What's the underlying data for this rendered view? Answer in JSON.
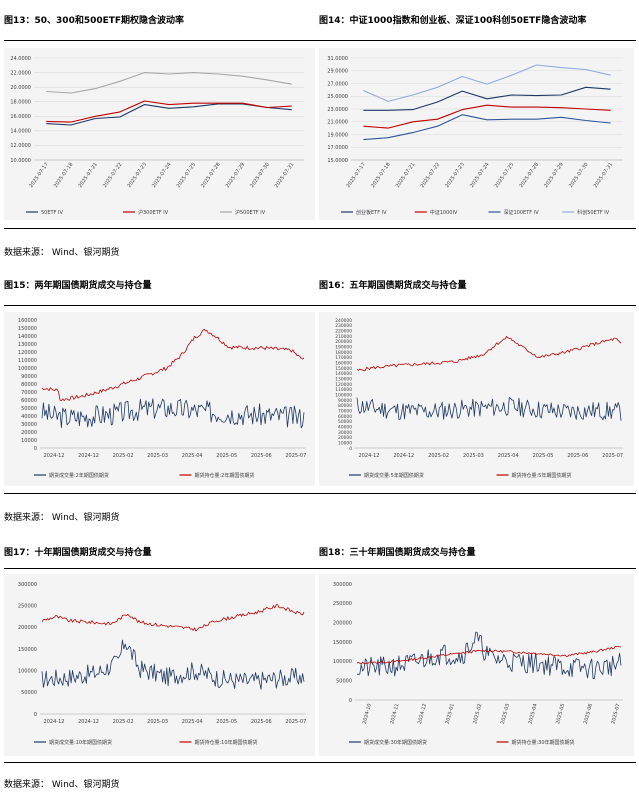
{
  "titles": {
    "f13": "图13：50、300和500ETF期权隐含波动率",
    "f14": "图14：中证1000指数和创业板、深证100科创50ETF隐含波动率",
    "f15": "图15：两年期国债期货成交与持仓量",
    "f16": "图16：五年期国债期货成交与持仓量",
    "f17": "图17：十年期国债期货成交与持仓量",
    "f18": "图18：三十年期国债期货成交与持仓量"
  },
  "source_text": "数据来源：  Wind、银河期货",
  "colors": {
    "navy": "#1f3864",
    "red": "#c00000",
    "gray": "#a6a6a6",
    "lightblue": "#8faadc"
  },
  "chart_data": [
    {
      "id": "f13",
      "type": "line",
      "x": [
        "2025-07-17",
        "2025-07-18",
        "2025-07-21",
        "2025-07-22",
        "2025-07-23",
        "2025-07-24",
        "2025-07-25",
        "2025-07-28",
        "2025-07-29",
        "2025-07-30",
        "2025-07-31"
      ],
      "ylim": [
        10,
        24
      ],
      "yticks": [
        10,
        12,
        14,
        16,
        18,
        20,
        22,
        24
      ],
      "ytick_format": "fixed4",
      "series": [
        {
          "name": "50ETF IV",
          "color": "#1f3864",
          "values": [
            15.0,
            14.8,
            15.7,
            15.9,
            17.6,
            17.1,
            17.3,
            17.7,
            17.7,
            17.2,
            16.9
          ]
        },
        {
          "name": "沪300ETF IV",
          "color": "#c00000",
          "values": [
            15.3,
            15.2,
            16.0,
            16.6,
            18.1,
            17.6,
            17.8,
            17.8,
            17.8,
            17.2,
            17.4
          ]
        },
        {
          "name": "沪500ETF IV",
          "color": "#a6a6a6",
          "values": [
            19.4,
            19.2,
            19.8,
            20.8,
            22.0,
            21.8,
            22.0,
            21.8,
            21.5,
            21.0,
            20.4
          ]
        }
      ]
    },
    {
      "id": "f14",
      "type": "line",
      "x": [
        "2025-07-17",
        "2025-07-18",
        "2025-07-21",
        "2025-07-22",
        "2025-07-23",
        "2025-07-24",
        "2025-07-25",
        "2025-07-28",
        "2025-07-29",
        "2025-07-30",
        "2025-07-31"
      ],
      "ylim": [
        15,
        31
      ],
      "yticks": [
        15,
        17,
        19,
        21,
        23,
        25,
        27,
        29,
        31
      ],
      "ytick_format": "fixed4",
      "series": [
        {
          "name": "创业板ETF IV",
          "color": "#1f3864",
          "values": [
            22.8,
            22.8,
            22.9,
            24.1,
            25.8,
            24.6,
            25.2,
            25.1,
            25.2,
            26.4,
            26.1
          ]
        },
        {
          "name": "中证1000IV",
          "color": "#c00000",
          "values": [
            20.3,
            20.0,
            21.0,
            21.4,
            22.9,
            23.6,
            23.3,
            23.3,
            23.2,
            23.0,
            22.8
          ]
        },
        {
          "name": "深证100ETF IV",
          "color": "#2f5597",
          "values": [
            18.2,
            18.5,
            19.3,
            20.3,
            22.1,
            21.3,
            21.4,
            21.4,
            21.7,
            21.2,
            20.8
          ]
        },
        {
          "name": "科创50ETF IV",
          "color": "#8faadc",
          "values": [
            25.9,
            24.2,
            25.2,
            26.4,
            28.1,
            26.9,
            28.3,
            29.9,
            29.5,
            29.2,
            28.3
          ]
        }
      ]
    },
    {
      "id": "f15",
      "type": "line",
      "x_start": "2024-10-28",
      "x_end": "2025-07-31",
      "xticks": [
        "2024-12",
        "2024-12",
        "2025-02",
        "2025-03",
        "2025-04",
        "2025-05",
        "2025-06",
        "2025-07"
      ],
      "ylim": [
        0,
        160000
      ],
      "yticks": [
        0,
        10000,
        20000,
        30000,
        40000,
        50000,
        60000,
        70000,
        80000,
        90000,
        100000,
        110000,
        120000,
        130000,
        140000,
        150000,
        160000
      ],
      "series": [
        {
          "name": "期货成交量:2年期国债期货",
          "color": "#1f3864",
          "anchors": [
            [
              0,
              45000
            ],
            [
              8,
              40000
            ],
            [
              20,
              38000
            ],
            [
              35,
              40000
            ],
            [
              50,
              42000
            ],
            [
              70,
              48000
            ],
            [
              90,
              50000
            ],
            [
              110,
              47000
            ],
            [
              130,
              44000
            ],
            [
              150,
              42000
            ],
            [
              170,
              40000
            ],
            [
              190,
              38000
            ]
          ],
          "noise": 14000,
          "seed": 3
        },
        {
          "name": "期货持仓量:2年期国债期货",
          "color": "#c00000",
          "anchors": [
            [
              0,
              75000
            ],
            [
              12,
              72000
            ],
            [
              13,
              60000
            ],
            [
              30,
              65000
            ],
            [
              45,
              72000
            ],
            [
              70,
              87000
            ],
            [
              90,
              100000
            ],
            [
              100,
              115000
            ],
            [
              110,
              138000
            ],
            [
              118,
              148000
            ],
            [
              125,
              140000
            ],
            [
              135,
              126000
            ],
            [
              160,
              125000
            ],
            [
              180,
              122000
            ],
            [
              186,
              113000
            ],
            [
              190,
              110000
            ]
          ],
          "noise": 2500,
          "seed": 7
        }
      ]
    },
    {
      "id": "f16",
      "type": "line",
      "x_start": "2024-10-28",
      "x_end": "2025-07-31",
      "xticks": [
        "2024-12",
        "2024-12",
        "2025-02",
        "2025-03",
        "2025-04",
        "2025-05",
        "2025-06",
        "2025-07"
      ],
      "ylim": [
        0,
        240000
      ],
      "yticks": [
        0,
        10000,
        20000,
        30000,
        40000,
        50000,
        60000,
        70000,
        80000,
        90000,
        100000,
        110000,
        120000,
        130000,
        140000,
        150000,
        160000,
        170000,
        180000,
        190000,
        200000,
        210000,
        220000,
        230000,
        240000
      ],
      "series": [
        {
          "name": "期货成交量:5年期国债期货",
          "color": "#1f3864",
          "anchors": [
            [
              0,
              80000
            ],
            [
              10,
              75000
            ],
            [
              30,
              70000
            ],
            [
              50,
              68000
            ],
            [
              70,
              72000
            ],
            [
              90,
              75000
            ],
            [
              110,
              78000
            ],
            [
              130,
              72000
            ],
            [
              150,
              68000
            ],
            [
              170,
              70000
            ],
            [
              190,
              68000
            ]
          ],
          "noise": 18000,
          "seed": 11
        },
        {
          "name": "期货持仓量:5年期国债期货",
          "color": "#c00000",
          "anchors": [
            [
              0,
              145000
            ],
            [
              10,
              150000
            ],
            [
              30,
              155000
            ],
            [
              50,
              158000
            ],
            [
              70,
              162000
            ],
            [
              90,
              175000
            ],
            [
              100,
              195000
            ],
            [
              108,
              208000
            ],
            [
              115,
              195000
            ],
            [
              130,
              170000
            ],
            [
              150,
              180000
            ],
            [
              170,
              195000
            ],
            [
              185,
              205000
            ],
            [
              190,
              192000
            ]
          ],
          "noise": 3000,
          "seed": 5
        }
      ]
    },
    {
      "id": "f17",
      "type": "line",
      "x_start": "2024-11-01",
      "x_end": "2025-07-31",
      "xticks": [
        "2024-12",
        "2024-12",
        "2025-02",
        "2025-03",
        "2025-04",
        "2025-05",
        "2025-06",
        "2025-07"
      ],
      "ylim": [
        0,
        300000
      ],
      "yticks": [
        0,
        50000,
        100000,
        150000,
        200000,
        250000,
        300000
      ],
      "series": [
        {
          "name": "期货成交量:10年期国债期货",
          "color": "#1f3864",
          "anchors": [
            [
              0,
              80000
            ],
            [
              20,
              85000
            ],
            [
              40,
              95000
            ],
            [
              55,
              120000
            ],
            [
              60,
              170000
            ],
            [
              70,
              105000
            ],
            [
              90,
              85000
            ],
            [
              110,
              100000
            ],
            [
              130,
              80000
            ],
            [
              150,
              75000
            ],
            [
              170,
              82000
            ],
            [
              185,
              85000
            ]
          ],
          "noise": 22000,
          "seed": 17
        },
        {
          "name": "期货持仓量:10年期国债期货",
          "color": "#c00000",
          "anchors": [
            [
              0,
              215000
            ],
            [
              10,
              225000
            ],
            [
              20,
              215000
            ],
            [
              35,
              212000
            ],
            [
              50,
              208000
            ],
            [
              62,
              232000
            ],
            [
              70,
              212000
            ],
            [
              85,
              205000
            ],
            [
              100,
              200000
            ],
            [
              112,
              195000
            ],
            [
              125,
              215000
            ],
            [
              140,
              225000
            ],
            [
              155,
              235000
            ],
            [
              170,
              250000
            ],
            [
              185,
              232000
            ]
          ],
          "noise": 4000,
          "seed": 9
        }
      ]
    },
    {
      "id": "f18",
      "type": "line",
      "x_start": "2024-10-01",
      "x_end": "2025-07-31",
      "xticks": [
        "2024-10",
        "2024-11",
        "2024-12",
        "2025-01",
        "2025-02",
        "2025-03",
        "2025-04",
        "2025-05",
        "2025-06",
        "2025-07"
      ],
      "ylim": [
        0,
        300000
      ],
      "yticks": [
        0,
        50000,
        100000,
        150000,
        200000,
        250000,
        300000
      ],
      "series": [
        {
          "name": "期货成交量:30年期国债期货",
          "color": "#1f3864",
          "anchors": [
            [
              0,
              80000
            ],
            [
              20,
              85000
            ],
            [
              40,
              95000
            ],
            [
              60,
              120000
            ],
            [
              75,
              115000
            ],
            [
              85,
              160000
            ],
            [
              95,
              110000
            ],
            [
              110,
              100000
            ],
            [
              130,
              95000
            ],
            [
              150,
              85000
            ],
            [
              170,
              80000
            ],
            [
              190,
              95000
            ],
            [
              205,
              150000
            ],
            [
              210,
              130000
            ]
          ],
          "noise": 28000,
          "seed": 21
        },
        {
          "name": "期货持仓量:30年期国债期货",
          "color": "#c00000",
          "anchors": [
            [
              0,
              95000
            ],
            [
              30,
              100000
            ],
            [
              60,
              115000
            ],
            [
              90,
              128000
            ],
            [
              110,
              125000
            ],
            [
              130,
              120000
            ],
            [
              150,
              115000
            ],
            [
              170,
              125000
            ],
            [
              190,
              140000
            ],
            [
              210,
              152000
            ]
          ],
          "noise": 3000,
          "seed": 13
        }
      ]
    }
  ]
}
